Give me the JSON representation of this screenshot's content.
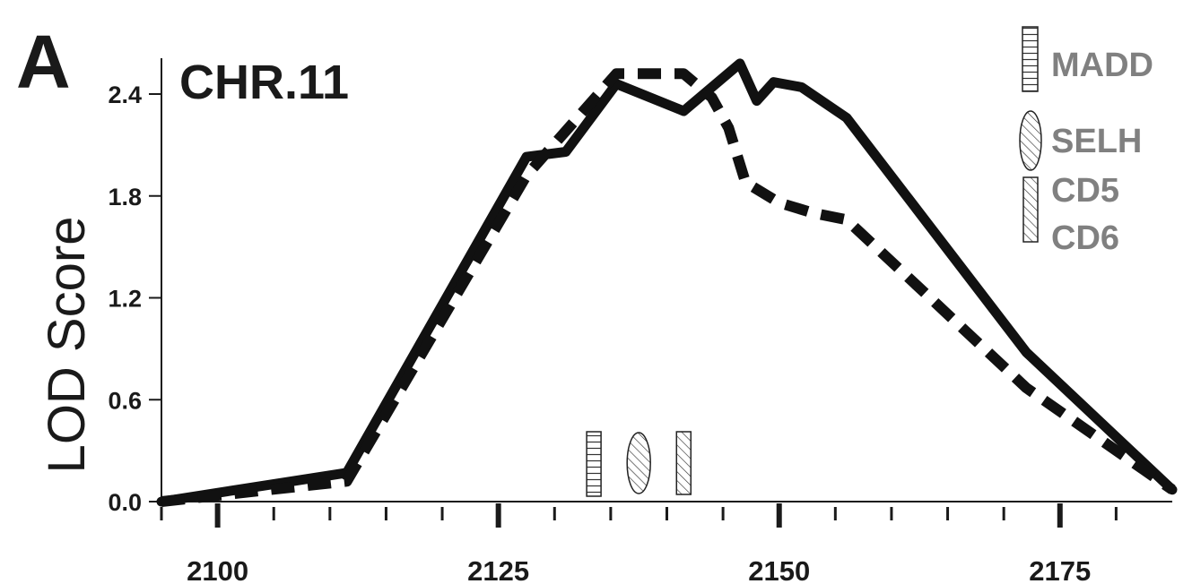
{
  "chart_data": {
    "type": "line",
    "panel_label": "A",
    "title": "CHR.11",
    "xlabel": "",
    "ylabel": "LOD Score",
    "xlim": [
      2095,
      2185
    ],
    "ylim": [
      0,
      2.6
    ],
    "x_major_ticks": [
      2100,
      2125,
      2150,
      2175
    ],
    "x_tick_labels": [
      "2100",
      "2125",
      "2150",
      "2175"
    ],
    "x_minor_ticks": [
      2095,
      2105,
      2110,
      2115,
      2120,
      2130,
      2135,
      2140,
      2145,
      2155,
      2160,
      2165,
      2170,
      2180
    ],
    "y_ticks": [
      0.0,
      0.6,
      1.2,
      1.8,
      2.4
    ],
    "y_tick_labels": [
      "0.0",
      "0.6",
      "1.2",
      "1.8",
      "2.4"
    ],
    "grid": false,
    "legend_position": "top-right",
    "series": [
      {
        "style": "solid",
        "points": [
          [
            2095,
            0.0
          ],
          [
            2111.5,
            0.17
          ],
          [
            2127.5,
            2.03
          ],
          [
            2131,
            2.06
          ],
          [
            2135.5,
            2.46
          ],
          [
            2141.5,
            2.3
          ],
          [
            2146.5,
            2.58
          ],
          [
            2148,
            2.36
          ],
          [
            2149.5,
            2.47
          ],
          [
            2152,
            2.44
          ],
          [
            2156,
            2.26
          ],
          [
            2172,
            0.88
          ],
          [
            2185,
            0.07
          ]
        ]
      },
      {
        "style": "dashed",
        "points": [
          [
            2095,
            0.0
          ],
          [
            2111.5,
            0.12
          ],
          [
            2127.5,
            1.92
          ],
          [
            2135.5,
            2.52
          ],
          [
            2141.5,
            2.52
          ],
          [
            2144,
            2.38
          ],
          [
            2145.5,
            2.2
          ],
          [
            2147,
            1.88
          ],
          [
            2150,
            1.76
          ],
          [
            2153,
            1.7
          ],
          [
            2156,
            1.66
          ],
          [
            2172,
            0.67
          ],
          [
            2185,
            0.07
          ]
        ]
      }
    ],
    "gene_markers": [
      {
        "name": "MADD",
        "position": 2133.5,
        "shape": "rect-horizontal-hatch"
      },
      {
        "name": "SELH",
        "position": 2137.5,
        "shape": "ellipse-diagonal-hatch"
      },
      {
        "name": "CD5",
        "position": 2141.5,
        "shape": "rect-diagonal-hatch"
      }
    ],
    "legend": [
      {
        "label": "MADD",
        "shape": "rect-horizontal-hatch"
      },
      {
        "label": "SELH",
        "shape": "ellipse-diagonal-hatch"
      },
      {
        "label": "CD5",
        "shape": "rect-diagonal-hatch"
      },
      {
        "label": "CD6",
        "shape": "none"
      }
    ],
    "colors": {
      "line": "#111111",
      "axis": "#1a1a1a",
      "legend_text": "#808080"
    }
  }
}
